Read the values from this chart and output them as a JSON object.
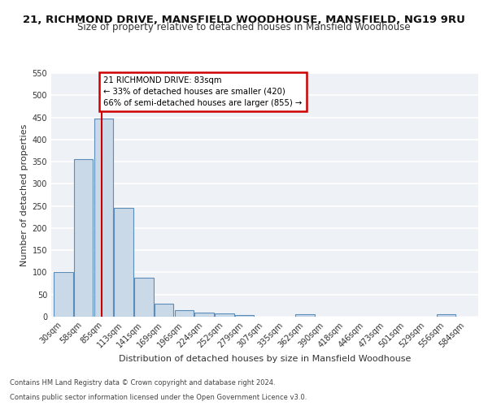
{
  "title_line1": "21, RICHMOND DRIVE, MANSFIELD WOODHOUSE, MANSFIELD, NG19 9RU",
  "title_line2": "Size of property relative to detached houses in Mansfield Woodhouse",
  "xlabel": "Distribution of detached houses by size in Mansfield Woodhouse",
  "ylabel": "Number of detached properties",
  "footnote_line1": "Contains HM Land Registry data © Crown copyright and database right 2024.",
  "footnote_line2": "Contains public sector information licensed under the Open Government Licence v3.0.",
  "bin_labels": [
    "30sqm",
    "58sqm",
    "85sqm",
    "113sqm",
    "141sqm",
    "169sqm",
    "196sqm",
    "224sqm",
    "252sqm",
    "279sqm",
    "307sqm",
    "335sqm",
    "362sqm",
    "390sqm",
    "418sqm",
    "446sqm",
    "473sqm",
    "501sqm",
    "529sqm",
    "556sqm",
    "584sqm"
  ],
  "bar_heights": [
    100,
    355,
    447,
    245,
    88,
    30,
    15,
    10,
    8,
    4,
    0,
    0,
    6,
    0,
    0,
    0,
    0,
    0,
    0,
    5,
    0
  ],
  "bar_color": "#c9d9e8",
  "bar_edge_color": "#5b8db8",
  "property_line_color": "#cc0000",
  "annotation_text": "21 RICHMOND DRIVE: 83sqm\n← 33% of detached houses are smaller (420)\n66% of semi-detached houses are larger (855) →",
  "annotation_box_color": "#cc0000",
  "ylim": [
    0,
    550
  ],
  "yticks": [
    0,
    50,
    100,
    150,
    200,
    250,
    300,
    350,
    400,
    450,
    500,
    550
  ],
  "bg_color": "#eef2f7",
  "grid_color": "#ffffff",
  "title_fontsize": 9.5,
  "subtitle_fontsize": 8.5,
  "axis_label_fontsize": 8,
  "tick_fontsize": 7,
  "footnote_fontsize": 6
}
